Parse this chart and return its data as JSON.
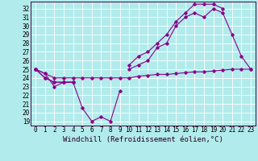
{
  "xlabel": "Windchill (Refroidissement éolien,°C)",
  "background_color": "#b2ebeb",
  "line_color": "#880088",
  "grid_color": "#ffffff",
  "x_hours": [
    0,
    1,
    2,
    3,
    4,
    5,
    6,
    7,
    8,
    9,
    10,
    11,
    12,
    13,
    14,
    15,
    16,
    17,
    18,
    19,
    20,
    21,
    22,
    23
  ],
  "series_low": [
    25.0,
    24.5,
    23.0,
    23.5,
    23.5,
    20.5,
    19.0,
    19.5,
    19.0,
    22.5,
    null,
    null,
    null,
    null,
    null,
    null,
    null,
    null,
    null,
    null,
    null,
    null,
    null,
    null
  ],
  "series_mid": [
    25.0,
    24.0,
    23.5,
    23.5,
    23.5,
    null,
    null,
    null,
    null,
    null,
    25.0,
    25.5,
    26.0,
    27.5,
    28.0,
    30.0,
    31.0,
    31.5,
    31.0,
    32.0,
    31.5,
    29.0,
    26.5,
    25.0
  ],
  "series_high": [
    25.0,
    24.0,
    23.5,
    23.5,
    23.5,
    null,
    null,
    null,
    null,
    null,
    25.5,
    26.5,
    27.0,
    28.0,
    29.0,
    30.5,
    31.5,
    32.5,
    32.5,
    32.5,
    32.0,
    null,
    null,
    null
  ],
  "series_flat": [
    25.0,
    24.5,
    24.0,
    24.0,
    24.0,
    24.0,
    24.0,
    24.0,
    24.0,
    24.0,
    24.0,
    24.2,
    24.3,
    24.4,
    24.4,
    24.5,
    24.6,
    24.7,
    24.7,
    24.8,
    24.9,
    25.0,
    25.0,
    25.0
  ],
  "ylim": [
    18.5,
    32.8
  ],
  "xlim": [
    -0.5,
    23.5
  ],
  "yticks": [
    19,
    20,
    21,
    22,
    23,
    24,
    25,
    26,
    27,
    28,
    29,
    30,
    31,
    32
  ],
  "xticks": [
    0,
    1,
    2,
    3,
    4,
    5,
    6,
    7,
    8,
    9,
    10,
    11,
    12,
    13,
    14,
    15,
    16,
    17,
    18,
    19,
    20,
    21,
    22,
    23
  ],
  "tick_fontsize": 5.5,
  "xlabel_fontsize": 6.5
}
